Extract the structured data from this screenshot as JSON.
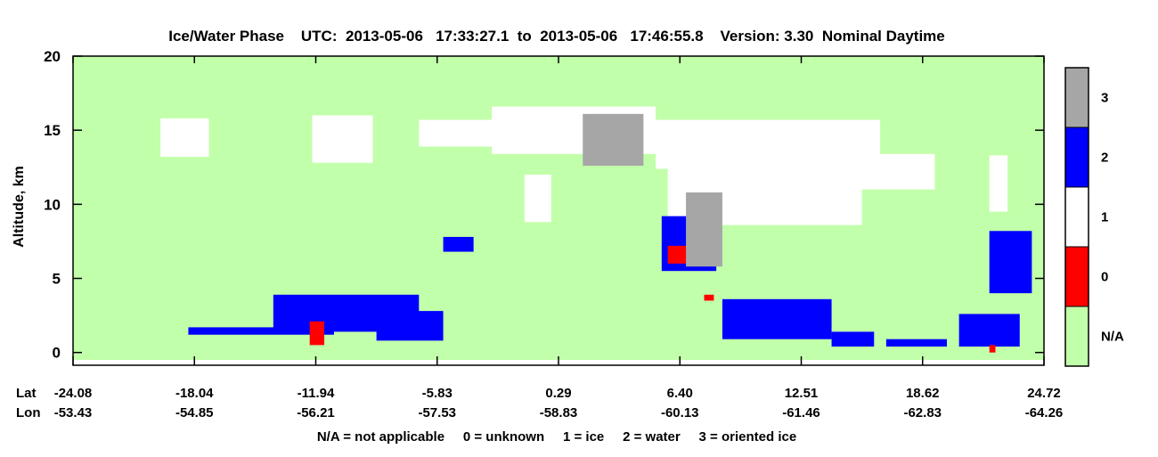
{
  "chart_data": {
    "type": "heatmap",
    "title": "Ice/Water Phase    UTC:  2013-05-06   17:33:27.1  to  2013-05-06   17:46:55.8    Version: 3.30  Nominal Daytime",
    "ylabel": "Altitude, km",
    "ylim": [
      -0.5,
      20
    ],
    "yticks": [
      0,
      5,
      10,
      15,
      20
    ],
    "xlim": [
      0,
      8
    ],
    "x_axis_rows": [
      {
        "label": "Lat",
        "ticks": [
          "-24.08",
          "-18.04",
          "-11.94",
          "-5.83",
          "0.29",
          "6.40",
          "12.51",
          "18.62",
          "24.72"
        ]
      },
      {
        "label": "Lon",
        "ticks": [
          "-53.43",
          "-54.85",
          "-56.21",
          "-57.53",
          "-58.83",
          "-60.13",
          "-61.46",
          "-62.83",
          "-64.26"
        ]
      }
    ],
    "legend_note": "N/A = not applicable     0 = unknown     1 = ice     2 = water     3 = oriented ice",
    "colorbar": {
      "labels": [
        "3",
        "2",
        "1",
        "0",
        "N/A"
      ],
      "colors": [
        "#a6a6a6",
        "#0000ff",
        "#ffffff",
        "#ff0000",
        "#c2ffaa"
      ]
    },
    "class_colors": {
      "na": "#c2ffaa",
      "unknown": "#ff0000",
      "ice": "#ffffff",
      "water": "#0000ff",
      "oriented_ice": "#a6a6a6"
    },
    "features": [
      {
        "class": "ice",
        "x": 0.72,
        "y": 13.2,
        "w": 0.4,
        "h": 2.6
      },
      {
        "class": "ice",
        "x": 1.97,
        "y": 12.8,
        "w": 0.5,
        "h": 3.2
      },
      {
        "class": "ice",
        "x": 2.85,
        "y": 13.9,
        "w": 0.75,
        "h": 1.8
      },
      {
        "class": "ice",
        "x": 3.45,
        "y": 13.4,
        "w": 1.35,
        "h": 3.2
      },
      {
        "class": "ice",
        "x": 4.8,
        "y": 12.4,
        "w": 1.85,
        "h": 3.3
      },
      {
        "class": "ice",
        "x": 4.9,
        "y": 8.6,
        "w": 1.6,
        "h": 4.5
      },
      {
        "class": "ice",
        "x": 6.35,
        "y": 11.0,
        "w": 0.75,
        "h": 2.4
      },
      {
        "class": "ice",
        "x": 7.55,
        "y": 9.5,
        "w": 0.15,
        "h": 3.8
      },
      {
        "class": "ice",
        "x": 3.72,
        "y": 8.8,
        "w": 0.22,
        "h": 3.2
      },
      {
        "class": "water",
        "x": 0.95,
        "y": 1.2,
        "w": 1.2,
        "h": 0.5
      },
      {
        "class": "water",
        "x": 1.65,
        "y": 1.4,
        "w": 1.2,
        "h": 2.5
      },
      {
        "class": "water",
        "x": 2.5,
        "y": 0.8,
        "w": 0.55,
        "h": 2.0
      },
      {
        "class": "water",
        "x": 5.35,
        "y": 0.9,
        "w": 0.9,
        "h": 2.7
      },
      {
        "class": "water",
        "x": 6.25,
        "y": 0.4,
        "w": 0.35,
        "h": 1.0
      },
      {
        "class": "water",
        "x": 6.7,
        "y": 0.4,
        "w": 0.5,
        "h": 0.5
      },
      {
        "class": "water",
        "x": 7.3,
        "y": 0.4,
        "w": 0.5,
        "h": 2.2
      },
      {
        "class": "water",
        "x": 8.25,
        "y": 0.2,
        "w": 0.65,
        "h": 1.0
      },
      {
        "class": "water",
        "x": 3.05,
        "y": 6.8,
        "w": 0.25,
        "h": 1.0
      },
      {
        "class": "water",
        "x": 4.85,
        "y": 5.5,
        "w": 0.45,
        "h": 3.7
      },
      {
        "class": "water",
        "x": 7.55,
        "y": 4.0,
        "w": 0.35,
        "h": 4.2
      },
      {
        "class": "unknown",
        "x": 1.95,
        "y": 0.5,
        "w": 0.12,
        "h": 1.6
      },
      {
        "class": "unknown",
        "x": 4.9,
        "y": 6.0,
        "w": 0.2,
        "h": 1.2
      },
      {
        "class": "unknown",
        "x": 7.55,
        "y": 0.0,
        "w": 0.05,
        "h": 0.5
      },
      {
        "class": "unknown",
        "x": 5.2,
        "y": 3.5,
        "w": 0.08,
        "h": 0.4
      },
      {
        "class": "oriented_ice",
        "x": 5.05,
        "y": 5.8,
        "w": 0.3,
        "h": 5.0
      },
      {
        "class": "oriented_ice",
        "x": 4.2,
        "y": 12.6,
        "w": 0.5,
        "h": 3.5
      }
    ]
  }
}
